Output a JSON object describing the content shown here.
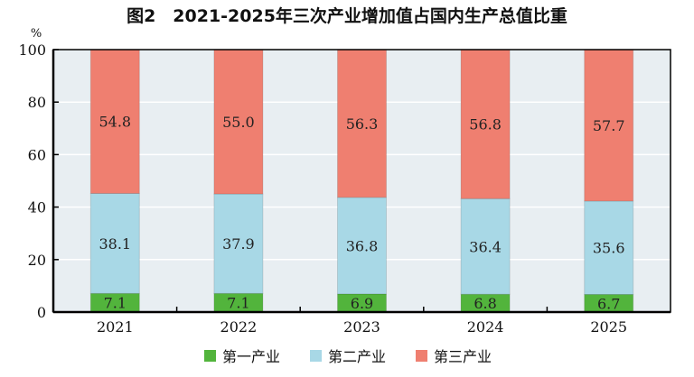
{
  "chart_data": {
    "type": "bar",
    "stacked": true,
    "title": "图2　2021-2025年三次产业增加值占国内生产总值比重",
    "ylabel": "%",
    "xlabel": "",
    "ylim": [
      0,
      100
    ],
    "yticks": [
      "0",
      "20",
      "40",
      "60",
      "80",
      "100"
    ],
    "grid": true,
    "legend_position": "bottom",
    "categories": [
      "2021",
      "2022",
      "2023",
      "2024",
      "2025"
    ],
    "series": [
      {
        "name": "第一产业",
        "color": "#52b43c",
        "values": [
          7.1,
          7.1,
          6.9,
          6.8,
          6.7
        ],
        "labels": [
          "7.1",
          "7.1",
          "6.9",
          "6.8",
          "6.7"
        ]
      },
      {
        "name": "第二产业",
        "color": "#a8d8e6",
        "values": [
          38.1,
          37.9,
          36.8,
          36.4,
          35.6
        ],
        "labels": [
          "38.1",
          "37.9",
          "36.8",
          "36.4",
          "35.6"
        ]
      },
      {
        "name": "第三产业",
        "color": "#ef7f70",
        "values": [
          54.8,
          55.0,
          56.3,
          56.8,
          57.7
        ],
        "labels": [
          "54.8",
          "55.0",
          "56.3",
          "56.8",
          "57.7"
        ]
      }
    ],
    "plot_background": "#e8eef2"
  }
}
